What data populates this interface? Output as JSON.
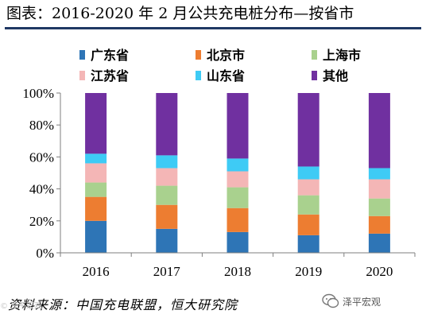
{
  "title": "图表：2016-2020 年 2 月公共充电桩分布—按省市",
  "source": "资料来源：中国充电联盟，恒大研究院",
  "watermark": {
    "text": "泽平宏观",
    "icon": "wechat-icon",
    "left_mark": "© 泽平宏观"
  },
  "colors": {
    "axis": "#7f7f7f",
    "title_rule": "#1f3864"
  },
  "chart_data": {
    "type": "bar",
    "stacked": true,
    "categories": [
      "2016",
      "2017",
      "2018",
      "2019",
      "2020"
    ],
    "ylim": [
      0,
      100
    ],
    "yticks": [
      "0%",
      "20%",
      "40%",
      "60%",
      "80%",
      "100%"
    ],
    "grid": false,
    "legend_position": "top",
    "series": [
      {
        "name": "广东省",
        "color": "#2e75b6",
        "values": [
          20,
          15,
          13,
          11,
          12
        ]
      },
      {
        "name": "北京市",
        "color": "#ed7d31",
        "values": [
          15,
          15,
          15,
          13,
          11
        ]
      },
      {
        "name": "上海市",
        "color": "#a9d18e",
        "values": [
          9,
          12,
          13,
          12,
          11
        ]
      },
      {
        "name": "江苏省",
        "color": "#f4b6b6",
        "values": [
          12,
          11,
          10,
          10,
          12
        ]
      },
      {
        "name": "山东省",
        "color": "#3ecbf5",
        "values": [
          6,
          8,
          8,
          8,
          7
        ]
      },
      {
        "name": "其他",
        "color": "#7030a0",
        "values": [
          38,
          39,
          41,
          46,
          47
        ]
      }
    ]
  }
}
